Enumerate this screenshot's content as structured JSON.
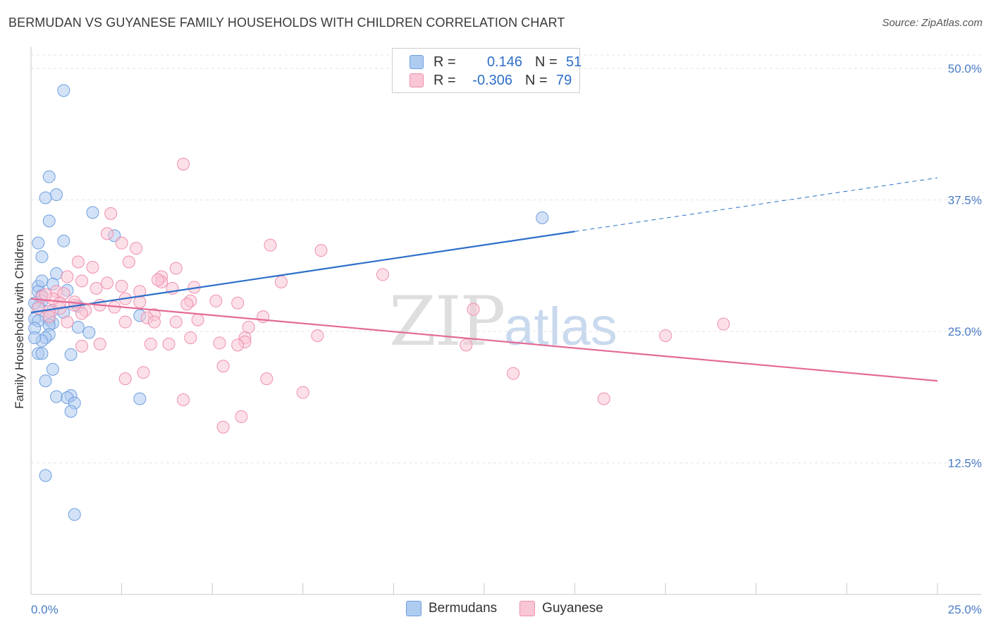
{
  "title": "BERMUDAN VS GUYANESE FAMILY HOUSEHOLDS WITH CHILDREN CORRELATION CHART",
  "source": "Source: ZipAtlas.com",
  "watermark": {
    "zip": "ZIP",
    "atlas": "atlas"
  },
  "legend": {
    "rows": [
      {
        "r_label": "R =",
        "r_value": "0.146",
        "n_label": "N =",
        "n_value": "51",
        "color": "#aecbf0",
        "border": "#6f9fe0"
      },
      {
        "r_label": "R =",
        "r_value": "-0.306",
        "n_label": "N =",
        "n_value": "79",
        "color": "#f9c6d5",
        "border": "#ee8faf"
      }
    ]
  },
  "bottom_legend": [
    {
      "label": "Bermudans",
      "color": "#aecbf0",
      "border": "#6f9fe0"
    },
    {
      "label": "Guyanese",
      "color": "#f9c6d5",
      "border": "#ee8faf"
    }
  ],
  "chart_data": {
    "type": "scatter",
    "title": "BERMUDAN VS GUYANESE FAMILY HOUSEHOLDS WITH CHILDREN CORRELATION CHART",
    "xlabel": "",
    "ylabel": "Family Households with Children",
    "xlim": [
      0,
      25
    ],
    "ylim": [
      0,
      50
    ],
    "x_tick_labels": [
      "0.0%",
      "25.0%"
    ],
    "y_ticks": [
      12.5,
      25.0,
      37.5,
      50.0
    ],
    "y_tick_labels": [
      "12.5%",
      "25.0%",
      "37.5%",
      "50.0%"
    ],
    "series": [
      {
        "name": "Bermudans",
        "color": "#6f9fe0",
        "fill": "#aecbf0",
        "trend_color": "#2d6fc9",
        "trend": {
          "x0": 0,
          "y0": 26.8,
          "x1": 15,
          "y1": 34.5,
          "dash_to_x": 25,
          "dash_to_y": 39.6
        },
        "points": [
          [
            0.9,
            47.9
          ],
          [
            0.5,
            39.7
          ],
          [
            0.7,
            38.0
          ],
          [
            0.4,
            37.7
          ],
          [
            1.7,
            36.3
          ],
          [
            14.1,
            35.8
          ],
          [
            0.5,
            35.5
          ],
          [
            0.2,
            33.4
          ],
          [
            0.9,
            33.6
          ],
          [
            2.3,
            34.1
          ],
          [
            0.3,
            32.1
          ],
          [
            0.7,
            30.5
          ],
          [
            0.6,
            29.5
          ],
          [
            0.2,
            29.3
          ],
          [
            1.0,
            28.9
          ],
          [
            0.2,
            28.8
          ],
          [
            0.3,
            28.4
          ],
          [
            0.3,
            27.9
          ],
          [
            0.2,
            27.4
          ],
          [
            1.3,
            27.4
          ],
          [
            0.9,
            26.8
          ],
          [
            0.4,
            26.4
          ],
          [
            0.1,
            26.2
          ],
          [
            0.5,
            26.1
          ],
          [
            0.2,
            26.0
          ],
          [
            0.6,
            25.8
          ],
          [
            0.5,
            25.6
          ],
          [
            1.3,
            25.4
          ],
          [
            0.1,
            25.3
          ],
          [
            0.5,
            24.7
          ],
          [
            0.4,
            24.4
          ],
          [
            0.3,
            24.1
          ],
          [
            1.6,
            24.9
          ],
          [
            0.1,
            24.4
          ],
          [
            0.2,
            22.9
          ],
          [
            1.1,
            22.8
          ],
          [
            0.3,
            22.9
          ],
          [
            0.6,
            21.4
          ],
          [
            0.4,
            20.3
          ],
          [
            3.0,
            26.5
          ],
          [
            0.7,
            18.8
          ],
          [
            1.1,
            18.9
          ],
          [
            1.0,
            18.7
          ],
          [
            1.2,
            18.2
          ],
          [
            3.0,
            18.6
          ],
          [
            1.1,
            17.4
          ],
          [
            0.4,
            11.3
          ],
          [
            1.2,
            7.6
          ],
          [
            0.1,
            27.7
          ],
          [
            0.3,
            29.8
          ],
          [
            0.6,
            27.0
          ]
        ]
      },
      {
        "name": "Guyanese",
        "color": "#ee8faf",
        "fill": "#f9c6d5",
        "trend_color": "#e46a96",
        "trend": {
          "x0": 0,
          "y0": 28.1,
          "x1": 25,
          "y1": 20.3
        },
        "points": [
          [
            4.2,
            40.9
          ],
          [
            2.2,
            36.2
          ],
          [
            2.1,
            34.3
          ],
          [
            2.5,
            33.4
          ],
          [
            2.9,
            32.9
          ],
          [
            6.6,
            33.2
          ],
          [
            8.0,
            32.7
          ],
          [
            1.3,
            31.6
          ],
          [
            2.7,
            31.6
          ],
          [
            1.7,
            31.1
          ],
          [
            4.0,
            31.0
          ],
          [
            3.6,
            30.2
          ],
          [
            9.7,
            30.4
          ],
          [
            1.0,
            30.2
          ],
          [
            1.4,
            29.8
          ],
          [
            3.6,
            29.7
          ],
          [
            6.9,
            29.7
          ],
          [
            2.1,
            29.6
          ],
          [
            2.5,
            29.3
          ],
          [
            3.9,
            29.1
          ],
          [
            4.5,
            29.2
          ],
          [
            1.8,
            29.1
          ],
          [
            3.0,
            28.8
          ],
          [
            0.7,
            28.8
          ],
          [
            0.9,
            28.6
          ],
          [
            0.3,
            28.3
          ],
          [
            0.6,
            28.1
          ],
          [
            4.4,
            27.9
          ],
          [
            5.1,
            27.9
          ],
          [
            5.7,
            27.7
          ],
          [
            3.0,
            27.8
          ],
          [
            4.3,
            27.6
          ],
          [
            1.2,
            27.5
          ],
          [
            1.9,
            27.5
          ],
          [
            2.3,
            27.3
          ],
          [
            0.8,
            27.2
          ],
          [
            1.5,
            27.0
          ],
          [
            12.2,
            27.1
          ],
          [
            1.4,
            26.7
          ],
          [
            0.5,
            26.9
          ],
          [
            3.4,
            26.6
          ],
          [
            6.4,
            26.4
          ],
          [
            3.2,
            26.3
          ],
          [
            4.6,
            26.1
          ],
          [
            2.6,
            25.9
          ],
          [
            3.4,
            25.9
          ],
          [
            4.0,
            25.9
          ],
          [
            1.0,
            25.9
          ],
          [
            19.1,
            25.7
          ],
          [
            6.0,
            25.4
          ],
          [
            7.9,
            24.6
          ],
          [
            17.5,
            24.6
          ],
          [
            4.4,
            24.4
          ],
          [
            5.9,
            24.4
          ],
          [
            5.9,
            24.0
          ],
          [
            5.2,
            23.9
          ],
          [
            1.9,
            23.8
          ],
          [
            5.7,
            23.7
          ],
          [
            12.0,
            23.7
          ],
          [
            1.4,
            23.6
          ],
          [
            3.3,
            23.8
          ],
          [
            3.8,
            23.8
          ],
          [
            5.3,
            21.7
          ],
          [
            3.1,
            21.1
          ],
          [
            13.3,
            21.0
          ],
          [
            2.6,
            20.5
          ],
          [
            6.5,
            20.5
          ],
          [
            7.5,
            19.2
          ],
          [
            15.8,
            18.6
          ],
          [
            4.2,
            18.5
          ],
          [
            5.8,
            16.9
          ],
          [
            5.3,
            15.9
          ],
          [
            0.4,
            28.5
          ],
          [
            0.2,
            27.2
          ],
          [
            1.2,
            27.8
          ],
          [
            0.5,
            26.4
          ],
          [
            2.6,
            28.1
          ],
          [
            3.5,
            29.9
          ],
          [
            0.8,
            27.7
          ]
        ]
      }
    ]
  }
}
